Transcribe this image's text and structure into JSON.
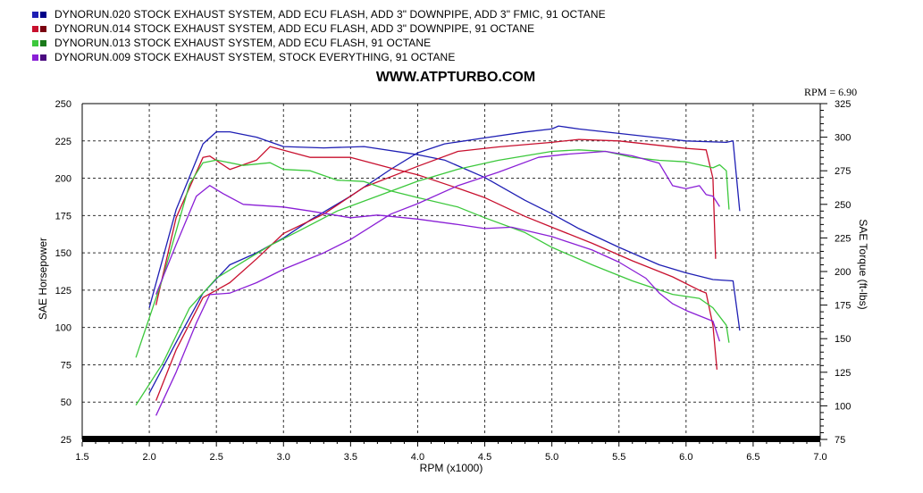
{
  "site_url": "WWW.ATPTURBO.COM",
  "rpm_readout": "RPM = 6.90",
  "legend": [
    {
      "label": "DYNORUN.020 STOCK EXHAUST SYSTEM, ADD ECU FLASH, ADD 3\" DOWNPIPE, ADD 3\" FMIC, 91 OCTANE",
      "color": "#1f1fb4",
      "color_dark": "#000088"
    },
    {
      "label": "DYNORUN.014 STOCK EXHAUST SYSTEM, ADD ECU FLASH, ADD 3\" DOWNPIPE, 91 OCTANE",
      "color": "#c8102e",
      "color_dark": "#7a0010"
    },
    {
      "label": "DYNORUN.013 STOCK EXHAUST SYSTEM, ADD ECU FLASH, 91 OCTANE",
      "color": "#3cc83c",
      "color_dark": "#1a7a1a"
    },
    {
      "label": "DYNORUN.009 STOCK EXHAUST SYSTEM, STOCK EVERYTHING, 91 OCTANE",
      "color": "#8a1fd6",
      "color_dark": "#4a0a80"
    }
  ],
  "chart_data": {
    "type": "line",
    "xlabel": "RPM (x1000)",
    "ylabel": "SAE Horsepower",
    "y2label": "SAE Torque (ft-lbs)",
    "xlim": [
      1.5,
      7.0
    ],
    "ylim": [
      25,
      250
    ],
    "y2lim": [
      75,
      325
    ],
    "xticks": [
      "1.5",
      "2.0",
      "2.5",
      "3.0",
      "3.5",
      "4.0",
      "4.5",
      "5.0",
      "5.5",
      "6.0",
      "6.5",
      "7.0"
    ],
    "yticks": [
      "25",
      "50",
      "75",
      "100",
      "125",
      "150",
      "175",
      "200",
      "225",
      "250"
    ],
    "y2ticks": [
      "75",
      "100",
      "125",
      "150",
      "175",
      "200",
      "225",
      "250",
      "275",
      "300",
      "325"
    ],
    "grid": true,
    "series": [
      {
        "name": "DYNORUN.020",
        "color": "#1f1fb4",
        "hp": [
          [
            2.0,
            56
          ],
          [
            2.2,
            90
          ],
          [
            2.4,
            123
          ],
          [
            2.6,
            142
          ],
          [
            2.8,
            150
          ],
          [
            3.0,
            160
          ],
          [
            3.2,
            172
          ],
          [
            3.5,
            188
          ],
          [
            3.8,
            206
          ],
          [
            4.0,
            217
          ],
          [
            4.2,
            223
          ],
          [
            4.5,
            227
          ],
          [
            4.8,
            231
          ],
          [
            5.0,
            233
          ],
          [
            5.05,
            235
          ],
          [
            5.2,
            233
          ],
          [
            5.5,
            230
          ],
          [
            5.8,
            227
          ],
          [
            6.0,
            225
          ],
          [
            6.3,
            224
          ],
          [
            6.35,
            225
          ],
          [
            6.4,
            178
          ]
        ],
        "tq": [
          [
            2.0,
            173
          ],
          [
            2.2,
            246
          ],
          [
            2.4,
            295
          ],
          [
            2.5,
            304
          ],
          [
            2.6,
            304
          ],
          [
            2.8,
            300
          ],
          [
            3.0,
            293
          ],
          [
            3.3,
            292
          ],
          [
            3.6,
            293
          ],
          [
            4.0,
            287
          ],
          [
            4.2,
            283
          ],
          [
            4.5,
            270
          ],
          [
            4.8,
            253
          ],
          [
            5.0,
            243
          ],
          [
            5.2,
            232
          ],
          [
            5.5,
            218
          ],
          [
            5.8,
            205
          ],
          [
            6.0,
            199
          ],
          [
            6.2,
            194
          ],
          [
            6.35,
            193
          ],
          [
            6.4,
            156
          ]
        ]
      },
      {
        "name": "DYNORUN.014",
        "color": "#c8102e",
        "hp": [
          [
            2.05,
            51
          ],
          [
            2.2,
            85
          ],
          [
            2.4,
            120
          ],
          [
            2.6,
            130
          ],
          [
            2.8,
            146
          ],
          [
            3.0,
            163
          ],
          [
            3.3,
            176
          ],
          [
            3.6,
            194
          ],
          [
            4.0,
            208
          ],
          [
            4.3,
            218
          ],
          [
            4.6,
            221
          ],
          [
            5.0,
            224
          ],
          [
            5.2,
            226
          ],
          [
            5.5,
            225
          ],
          [
            5.8,
            222
          ],
          [
            6.0,
            220
          ],
          [
            6.15,
            219
          ],
          [
            6.2,
            200
          ],
          [
            6.22,
            146
          ]
        ],
        "tq": [
          [
            2.05,
            175
          ],
          [
            2.2,
            240
          ],
          [
            2.4,
            285
          ],
          [
            2.45,
            286
          ],
          [
            2.6,
            276
          ],
          [
            2.8,
            283
          ],
          [
            2.9,
            293
          ],
          [
            3.2,
            285
          ],
          [
            3.5,
            285
          ],
          [
            3.8,
            277
          ],
          [
            4.0,
            272
          ],
          [
            4.3,
            262
          ],
          [
            4.5,
            255
          ],
          [
            4.8,
            241
          ],
          [
            5.0,
            233
          ],
          [
            5.3,
            221
          ],
          [
            5.6,
            208
          ],
          [
            5.9,
            196
          ],
          [
            6.1,
            186
          ],
          [
            6.15,
            184
          ],
          [
            6.2,
            160
          ],
          [
            6.23,
            127
          ]
        ]
      },
      {
        "name": "DYNORUN.013",
        "color": "#3cc83c",
        "hp": [
          [
            1.9,
            48
          ],
          [
            2.1,
            76
          ],
          [
            2.3,
            113
          ],
          [
            2.5,
            133
          ],
          [
            2.7,
            144
          ],
          [
            2.9,
            155
          ],
          [
            3.1,
            164
          ],
          [
            3.4,
            178
          ],
          [
            3.7,
            188
          ],
          [
            4.0,
            198
          ],
          [
            4.3,
            206
          ],
          [
            4.6,
            212
          ],
          [
            4.8,
            215
          ],
          [
            5.0,
            218
          ],
          [
            5.2,
            219
          ],
          [
            5.4,
            218
          ],
          [
            5.6,
            214
          ],
          [
            5.8,
            212
          ],
          [
            6.0,
            211
          ],
          [
            6.2,
            207
          ],
          [
            6.25,
            209
          ],
          [
            6.3,
            205
          ],
          [
            6.32,
            179
          ]
        ],
        "tq": [
          [
            1.9,
            136
          ],
          [
            2.1,
            195
          ],
          [
            2.3,
            265
          ],
          [
            2.4,
            281
          ],
          [
            2.5,
            283
          ],
          [
            2.7,
            279
          ],
          [
            2.9,
            281
          ],
          [
            3.0,
            276
          ],
          [
            3.2,
            275
          ],
          [
            3.4,
            268
          ],
          [
            3.6,
            267
          ],
          [
            3.8,
            260
          ],
          [
            4.0,
            255
          ],
          [
            4.3,
            248
          ],
          [
            4.5,
            240
          ],
          [
            4.8,
            229
          ],
          [
            5.0,
            218
          ],
          [
            5.3,
            205
          ],
          [
            5.6,
            193
          ],
          [
            5.9,
            183
          ],
          [
            6.1,
            180
          ],
          [
            6.2,
            173
          ],
          [
            6.3,
            160
          ],
          [
            6.32,
            147
          ]
        ]
      },
      {
        "name": "DYNORUN.009",
        "color": "#8a1fd6",
        "hp": [
          [
            2.05,
            41
          ],
          [
            2.2,
            70
          ],
          [
            2.35,
            103
          ],
          [
            2.45,
            122
          ],
          [
            2.6,
            123
          ],
          [
            2.8,
            130
          ],
          [
            3.0,
            139
          ],
          [
            3.3,
            150
          ],
          [
            3.5,
            159
          ],
          [
            3.8,
            176
          ],
          [
            4.0,
            183
          ],
          [
            4.3,
            195
          ],
          [
            4.6,
            204
          ],
          [
            4.9,
            214
          ],
          [
            5.1,
            216
          ],
          [
            5.4,
            218
          ],
          [
            5.6,
            215
          ],
          [
            5.8,
            210
          ],
          [
            5.9,
            195
          ],
          [
            6.0,
            193
          ],
          [
            6.1,
            195
          ],
          [
            6.15,
            189
          ],
          [
            6.2,
            188
          ],
          [
            6.25,
            181
          ]
        ],
        "tq": [
          [
            2.05,
            183
          ],
          [
            2.2,
            220
          ],
          [
            2.35,
            256
          ],
          [
            2.45,
            264
          ],
          [
            2.55,
            258
          ],
          [
            2.7,
            250
          ],
          [
            3.0,
            248
          ],
          [
            3.2,
            245
          ],
          [
            3.5,
            240
          ],
          [
            3.7,
            242
          ],
          [
            4.0,
            239
          ],
          [
            4.3,
            235
          ],
          [
            4.5,
            232
          ],
          [
            4.7,
            233
          ],
          [
            5.0,
            226
          ],
          [
            5.3,
            216
          ],
          [
            5.5,
            207
          ],
          [
            5.7,
            195
          ],
          [
            5.8,
            184
          ],
          [
            5.9,
            176
          ],
          [
            6.0,
            171
          ],
          [
            6.2,
            163
          ],
          [
            6.25,
            148
          ]
        ]
      }
    ]
  }
}
